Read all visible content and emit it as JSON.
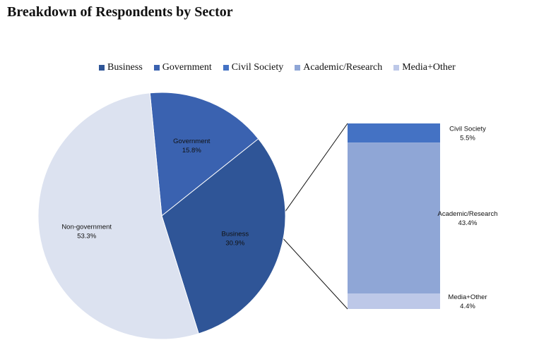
{
  "title": "Breakdown of Respondents by Sector",
  "chart_data": {
    "type": "pie",
    "title": "Breakdown of Respondents by Sector",
    "legend_position": "top",
    "legend": [
      "Business",
      "Government",
      "Civil Society",
      "Academic/Research",
      "Media+Other"
    ],
    "colors": {
      "Business": "#2F5597",
      "Government": "#3A62B0",
      "Civil Society": "#4472C4",
      "Academic/Research": "#8FA6D6",
      "Media+Other": "#BDC8E8",
      "Non-government": "#DCE2F0"
    },
    "pie_slices": [
      {
        "name": "Government",
        "value": 15.8,
        "label": "Government",
        "pct": "15.8%"
      },
      {
        "name": "Business",
        "value": 30.9,
        "label": "Business",
        "pct": "30.9%"
      },
      {
        "name": "Non-government",
        "value": 53.3,
        "label": "Non-government",
        "pct": "53.3%"
      }
    ],
    "bar_segments": [
      {
        "name": "Civil Society",
        "value": 5.5,
        "label": "Civil Society",
        "pct": "5.5%"
      },
      {
        "name": "Academic/Research",
        "value": 43.4,
        "label": "Academic/Research",
        "pct": "43.4%"
      },
      {
        "name": "Media+Other",
        "value": 4.4,
        "label": "Media+Other",
        "pct": "4.4%"
      }
    ]
  }
}
